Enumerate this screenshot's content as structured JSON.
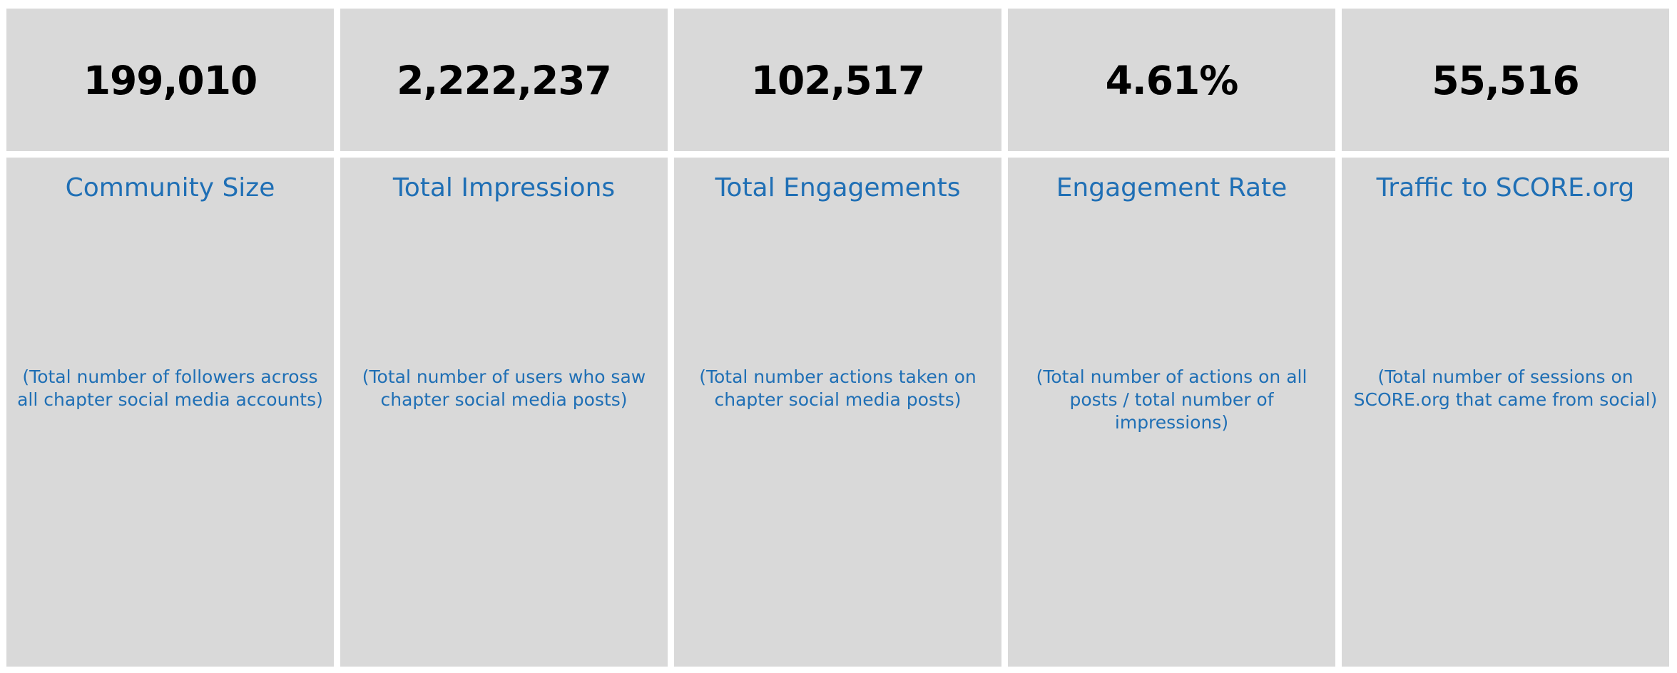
{
  "colors": {
    "cell_background": "#d9d9d9",
    "value_text": "#000000",
    "label_text": "#1f6fb5"
  },
  "metrics": [
    {
      "value": "199,010",
      "title": "Community Size",
      "description": "(Total number of followers across all chapter social media accounts)"
    },
    {
      "value": "2,222,237",
      "title": "Total Impressions",
      "description": "(Total number of users who saw chapter social media posts)"
    },
    {
      "value": "102,517",
      "title": "Total Engagements",
      "description": "(Total number actions taken on chapter social media posts)"
    },
    {
      "value": "4.61%",
      "title": "Engagement Rate",
      "description": "(Total number of actions on all posts / total number of impressions)"
    },
    {
      "value": "55,516",
      "title": "Traffic to SCORE.org",
      "description": "(Total number of sessions on SCORE.org that came from social)"
    }
  ]
}
